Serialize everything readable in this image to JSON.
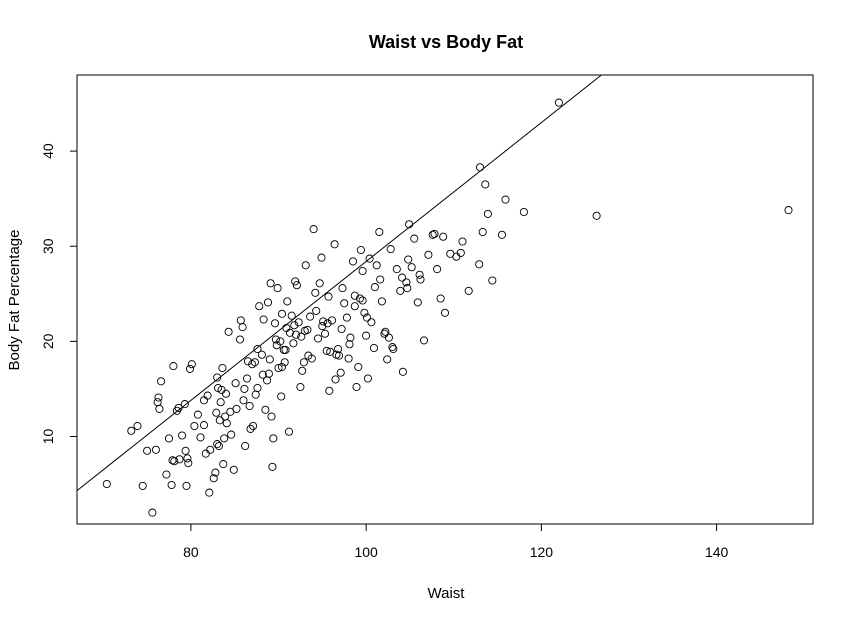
{
  "chart_data": {
    "type": "scatter",
    "title": "Waist vs Body Fat",
    "xlabel": "Waist",
    "ylabel": "Body Fat Percentage",
    "xlim": [
      67,
      151
    ],
    "ylim": [
      0.8,
      48
    ],
    "xticks": [
      80,
      100,
      120,
      140
    ],
    "yticks": [
      10,
      20,
      30,
      40
    ],
    "grid": false,
    "regression_line": {
      "slope": 0.73,
      "intercept": -44.6
    },
    "x": [
      70.4,
      73.2,
      73.9,
      74.5,
      75.0,
      75.6,
      76.0,
      76.2,
      76.3,
      76.4,
      76.6,
      77.2,
      77.5,
      77.8,
      78.0,
      78.1,
      78.6,
      78.7,
      79.0,
      79.3,
      79.5,
      79.6,
      79.7,
      79.9,
      80.1,
      80.8,
      81.1,
      81.5,
      81.7,
      81.9,
      82.1,
      82.2,
      82.6,
      82.8,
      82.9,
      83.0,
      83.1,
      83.2,
      83.3,
      83.4,
      83.5,
      83.6,
      83.7,
      83.8,
      83.9,
      84.0,
      84.1,
      84.3,
      84.6,
      84.9,
      85.2,
      85.6,
      85.7,
      85.9,
      86.1,
      86.2,
      86.4,
      86.7,
      86.8,
      87.1,
      87.3,
      87.4,
      87.6,
      87.8,
      88.1,
      88.3,
      88.5,
      88.7,
      88.8,
      88.9,
      89.1,
      89.2,
      89.3,
      89.4,
      89.6,
      89.8,
      89.9,
      90.0,
      90.2,
      90.3,
      90.4,
      90.6,
      90.7,
      90.9,
      91.0,
      91.2,
      91.5,
      91.7,
      91.9,
      92.0,
      92.1,
      92.3,
      92.5,
      92.6,
      92.9,
      93.1,
      93.3,
      93.6,
      93.8,
      94.0,
      94.2,
      94.5,
      94.7,
      94.9,
      95.1,
      95.3,
      95.5,
      95.7,
      95.8,
      95.9,
      96.1,
      96.4,
      96.6,
      96.8,
      97.1,
      97.3,
      97.5,
      97.8,
      98.0,
      98.2,
      98.5,
      98.7,
      98.9,
      99.1,
      99.3,
      99.6,
      99.8,
      100.0,
      100.2,
      100.4,
      100.6,
      100.9,
      101.2,
      101.5,
      101.8,
      102.1,
      102.4,
      102.8,
      103.1,
      103.5,
      103.9,
      104.2,
      104.6,
      104.9,
      105.2,
      105.5,
      105.9,
      106.2,
      106.6,
      107.1,
      107.6,
      108.1,
      108.5,
      109.0,
      109.6,
      110.3,
      111.0,
      111.7,
      113.0,
      113.3,
      113.6,
      113.9,
      114.4,
      115.5,
      115.9,
      118.0,
      122.0,
      126.3,
      148.2,
      77.9,
      78.4,
      79.4,
      80.4,
      81.5,
      83.0,
      84.5,
      86.0,
      87.6,
      89.0,
      90.4,
      91.8,
      93.4,
      95.0,
      96.5,
      98.1,
      99.6,
      101.0,
      102.6,
      104.1,
      85.1,
      86.5,
      88.2,
      89.7,
      91.3,
      92.7,
      94.3,
      95.6,
      97.2,
      98.7,
      100.1,
      101.6,
      103.0,
      104.8,
      106.1,
      107.8,
      87.0,
      90.8,
      93.0,
      96.9,
      99.4,
      102.2,
      104.7,
      108.8,
      110.8,
      112.9
    ],
    "y": [
      5.0,
      10.6,
      11.1,
      4.8,
      8.5,
      2.0,
      8.6,
      13.6,
      14.1,
      12.9,
      15.8,
      6.0,
      9.8,
      4.9,
      17.4,
      7.4,
      13.0,
      7.6,
      10.1,
      13.4,
      4.8,
      7.7,
      7.2,
      17.1,
      17.6,
      12.3,
      9.9,
      13.8,
      8.2,
      14.3,
      4.1,
      8.6,
      5.6,
      6.2,
      12.5,
      9.2,
      15.1,
      9.0,
      11.7,
      13.6,
      14.9,
      17.2,
      7.1,
      9.8,
      12.1,
      14.5,
      11.4,
      21.0,
      10.2,
      6.5,
      12.9,
      20.2,
      22.2,
      21.5,
      15.0,
      9.0,
      16.1,
      13.2,
      10.8,
      11.1,
      17.8,
      14.4,
      19.2,
      23.7,
      18.6,
      22.3,
      12.8,
      15.9,
      24.1,
      16.6,
      26.1,
      12.1,
      6.8,
      9.8,
      21.9,
      19.6,
      25.6,
      17.2,
      20.0,
      14.2,
      22.9,
      19.1,
      17.8,
      21.4,
      24.2,
      10.5,
      22.7,
      19.8,
      26.3,
      20.7,
      25.9,
      22.0,
      15.2,
      20.5,
      17.8,
      28.0,
      21.2,
      22.6,
      18.2,
      31.8,
      25.1,
      20.3,
      26.1,
      28.8,
      22.1,
      20.8,
      19.0,
      24.7,
      14.8,
      18.9,
      22.2,
      30.2,
      18.6,
      19.2,
      16.7,
      25.6,
      24.0,
      22.5,
      18.2,
      20.4,
      28.4,
      23.7,
      15.2,
      17.3,
      24.5,
      27.4,
      23.0,
      20.6,
      16.1,
      28.7,
      22.0,
      19.3,
      28.0,
      31.5,
      24.2,
      20.8,
      18.1,
      29.7,
      19.2,
      27.6,
      25.3,
      16.8,
      26.2,
      32.3,
      27.8,
      30.8,
      24.1,
      26.5,
      20.1,
      29.1,
      31.2,
      27.6,
      24.5,
      23.0,
      29.2,
      28.9,
      30.5,
      25.3,
      38.3,
      31.5,
      36.5,
      33.4,
      26.4,
      31.2,
      34.9,
      33.6,
      45.1,
      33.2,
      33.8,
      7.5,
      12.7,
      8.5,
      11.1,
      11.2,
      16.2,
      12.6,
      13.8,
      15.1,
      18.1,
      17.3,
      21.7,
      18.5,
      21.6,
      16.0,
      19.7,
      24.3,
      25.7,
      20.4,
      26.7,
      15.6,
      17.9,
      16.5,
      20.2,
      20.9,
      16.9,
      23.2,
      21.9,
      21.3,
      24.8,
      22.5,
      26.5,
      19.4,
      28.6,
      27.0,
      31.3,
      17.6,
      19.1,
      21.1,
      18.5,
      29.6,
      21.0,
      25.6,
      31.0,
      29.3,
      28.1
    ]
  }
}
